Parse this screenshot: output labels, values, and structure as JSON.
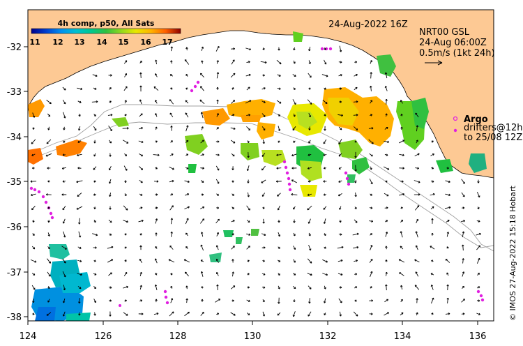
{
  "title": "24-Aug-2022 16Z",
  "colorbar": {
    "title": "4h comp, p50, All Sats",
    "tick_labels": [
      "11",
      "12",
      "13",
      "14",
      "15",
      "16",
      "17"
    ],
    "colors": [
      "#00008b",
      "#0033cc",
      "#0077ee",
      "#00b3e6",
      "#00c4a8",
      "#20c060",
      "#60d020",
      "#b8e020",
      "#f0e000",
      "#ffb000",
      "#ff7000",
      "#e03000",
      "#8b0000"
    ]
  },
  "current_legend": {
    "line1": "NRT00 GSL",
    "line2": "24-Aug 06:00Z",
    "line3": "0.5m/s (1kt 24h)"
  },
  "argo_legend": {
    "label": "Argo",
    "line1": "drifters@12h",
    "line2": "to 25/08 12Z"
  },
  "credit": "© IMOS 27-Aug-2022 15:18 Hobart",
  "x_ticks": [
    "124",
    "126",
    "128",
    "130",
    "132",
    "134",
    "136"
  ],
  "y_ticks": [
    "-32",
    "-33",
    "-34",
    "-35",
    "-36",
    "-37",
    "-38"
  ],
  "colors": {
    "land": "#fdc994",
    "arrow": "#000000",
    "argo": "#e020e0",
    "bathymetry": "#a0a0a0"
  }
}
